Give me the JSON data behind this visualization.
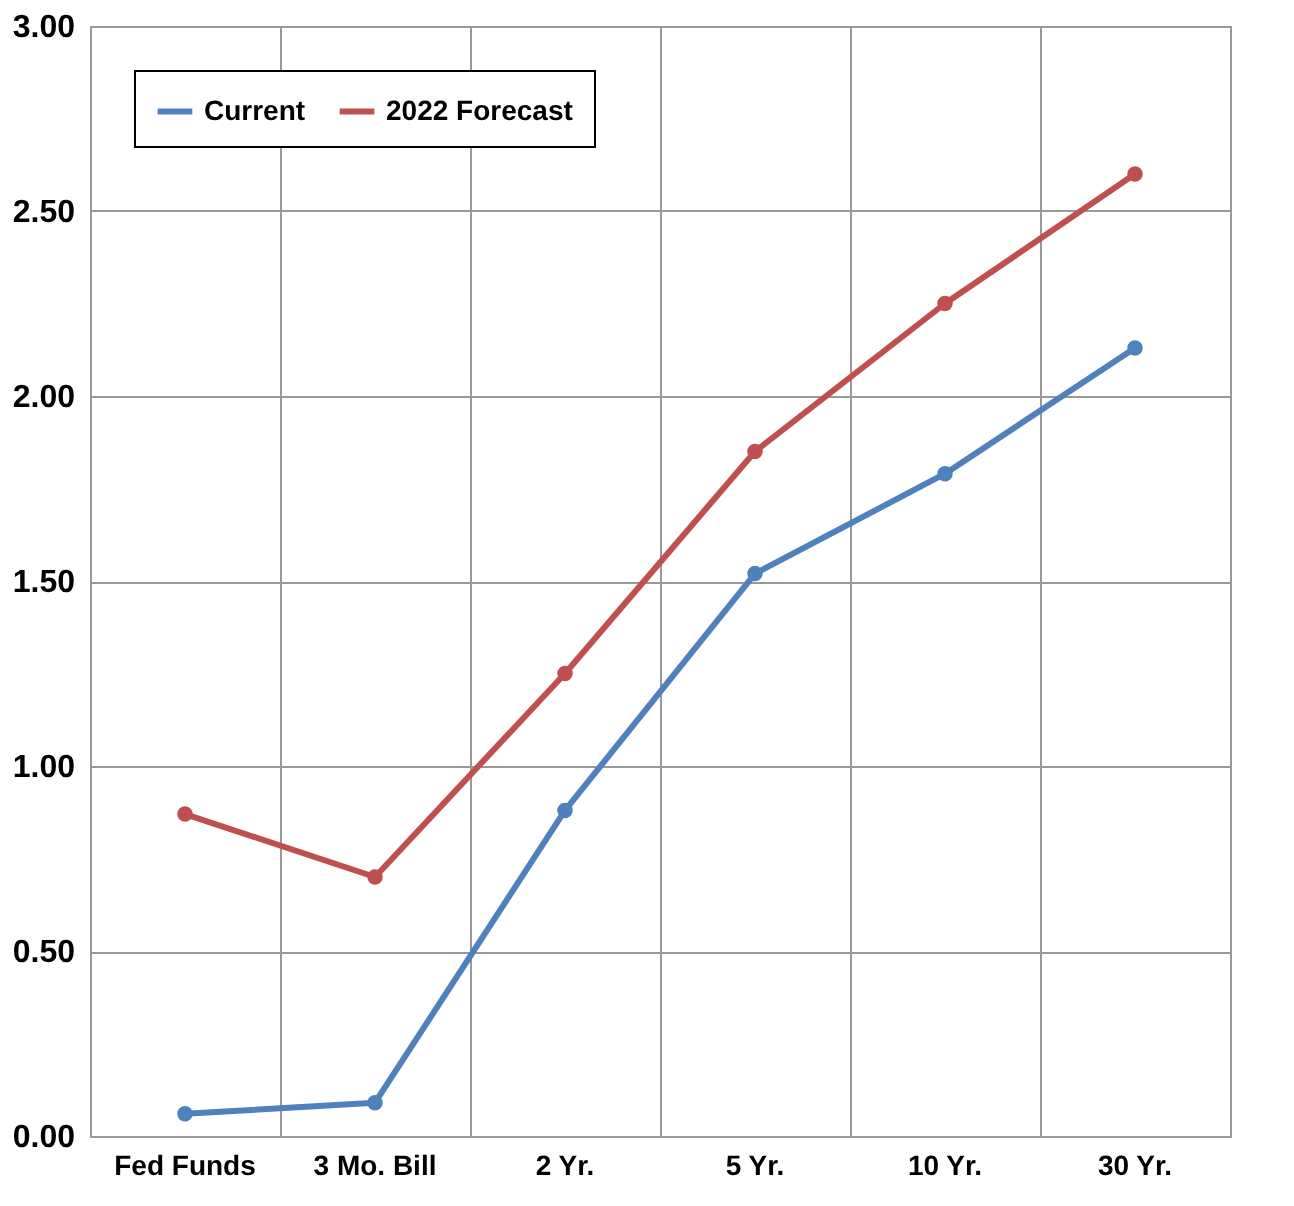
{
  "chart_data": {
    "type": "line",
    "categories": [
      "Fed Funds",
      "3 Mo. Bill",
      "2 Yr.",
      "5 Yr.",
      "10 Yr.",
      "30 Yr."
    ],
    "series": [
      {
        "name": "Current",
        "color": "#4f81bd",
        "values": [
          0.06,
          0.09,
          0.88,
          1.52,
          1.79,
          2.13
        ]
      },
      {
        "name": "2022 Forecast",
        "color": "#c0504d",
        "values": [
          0.87,
          0.7,
          1.25,
          1.85,
          2.25,
          2.6
        ]
      }
    ],
    "ylim": [
      0,
      3
    ],
    "yticks": [
      {
        "value": 0,
        "label": "0.00"
      },
      {
        "value": 0.5,
        "label": "0.50"
      },
      {
        "value": 1,
        "label": "1.00"
      },
      {
        "value": 1.5,
        "label": "1.50"
      },
      {
        "value": 2,
        "label": "2.00"
      },
      {
        "value": 2.5,
        "label": "2.50"
      },
      {
        "value": 3,
        "label": "3.00"
      }
    ],
    "grid": true,
    "legend": "top left",
    "marker": "circle",
    "line_style": "solid"
  }
}
